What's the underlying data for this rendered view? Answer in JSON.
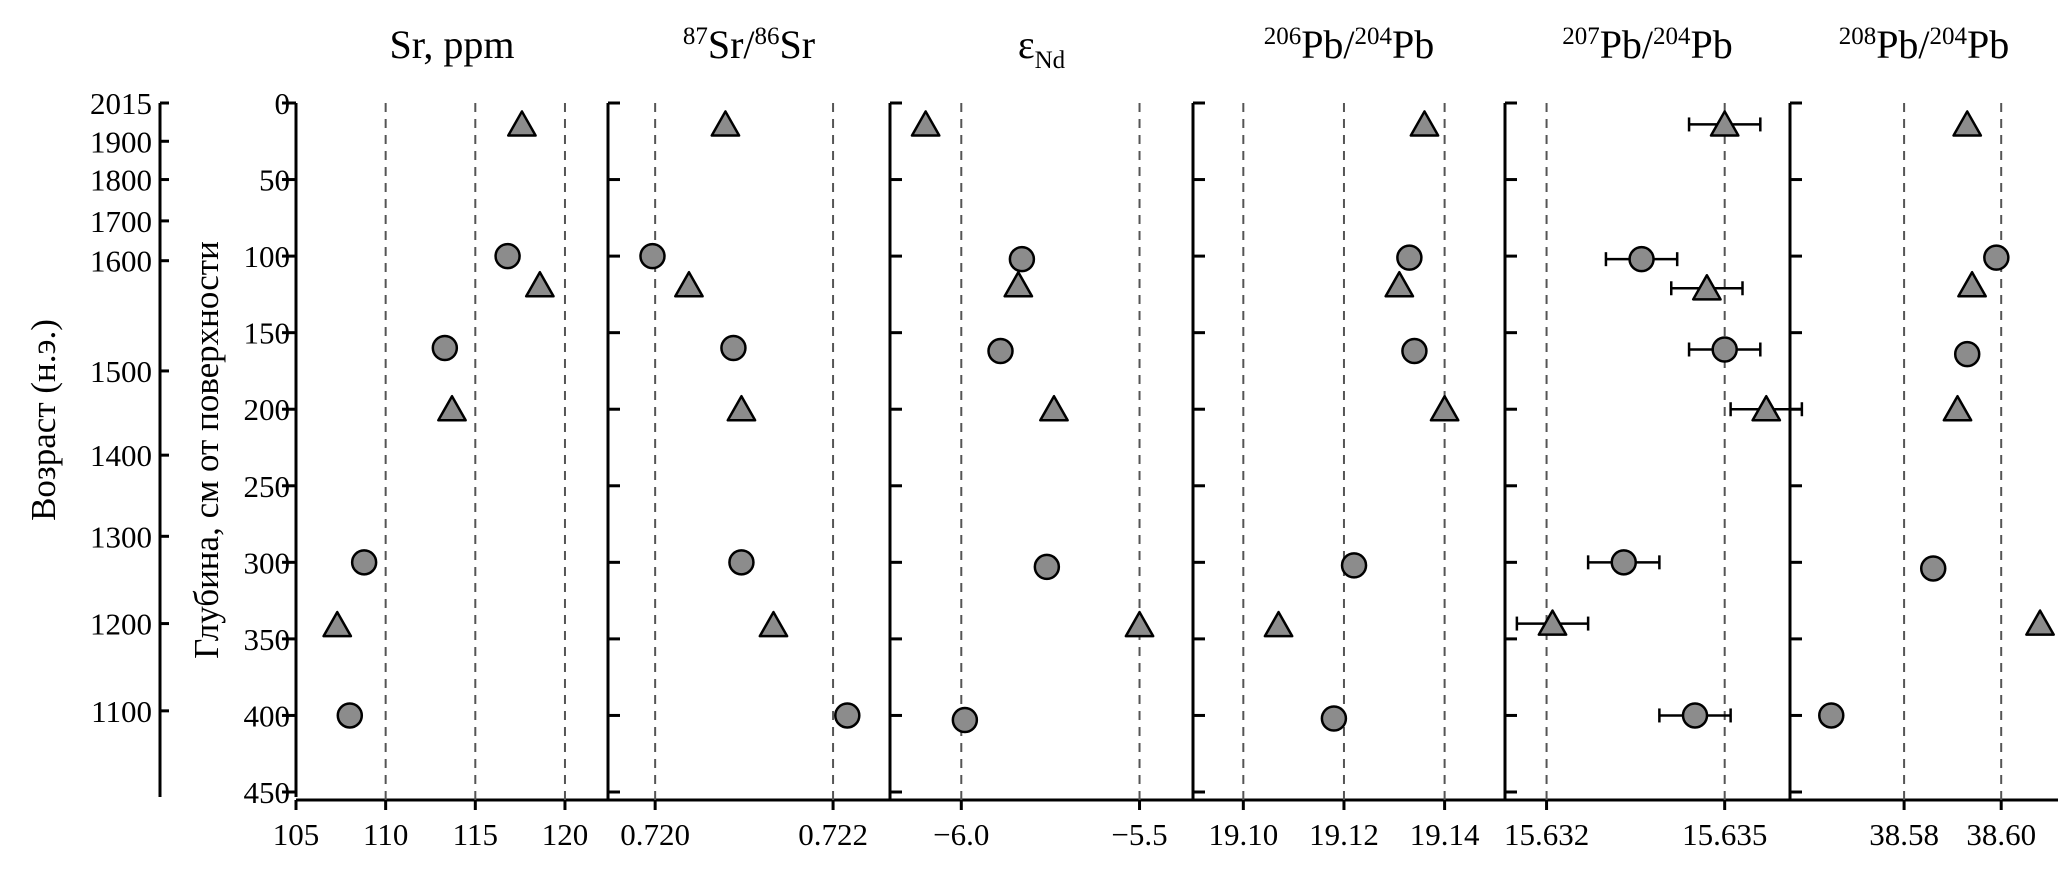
{
  "chart_data": {
    "type": "scatter",
    "y_axis": {
      "label": "Глубина, см от поверхности",
      "range": [
        0,
        450
      ],
      "ticks": [
        0,
        50,
        100,
        150,
        200,
        250,
        300,
        350,
        400,
        450
      ],
      "tick_labels": [
        "0",
        "50",
        "100",
        "150",
        "200",
        "250",
        "300",
        "350",
        "400",
        "450"
      ],
      "inverted": true
    },
    "age_axis": {
      "label": "Возраст (н.э.)",
      "tick_labels": [
        "2015",
        "1900",
        "1800",
        "1700",
        "1600",
        "1500",
        "1400",
        "1300",
        "1200",
        "1100"
      ],
      "depths": [
        0,
        25,
        50,
        77,
        103,
        175,
        230,
        283,
        340,
        397
      ]
    },
    "marker_fill": "#8c8c8c",
    "gridlines": "vertical dashed",
    "panels": [
      {
        "title": "Sr, ppm",
        "title_main": [
          "Sr, ppm"
        ],
        "title_sup": [],
        "title_sub": [],
        "xlim": [
          105,
          122.4
        ],
        "ticks": [
          105,
          110,
          115,
          120
        ],
        "tick_labels": [
          "105",
          "110",
          "115",
          "120"
        ],
        "grid": [
          110,
          115,
          120
        ],
        "circles": [
          {
            "x": 116.8,
            "y": 100
          },
          {
            "x": 113.3,
            "y": 160
          },
          {
            "x": 108.8,
            "y": 300
          },
          {
            "x": 108.0,
            "y": 400
          }
        ],
        "triangles": [
          {
            "x": 117.6,
            "y": 14
          },
          {
            "x": 118.6,
            "y": 119
          },
          {
            "x": 113.7,
            "y": 200
          },
          {
            "x": 107.3,
            "y": 341
          }
        ]
      },
      {
        "title": "87Sr/86Sr",
        "title_main": [
          "Sr/",
          "Sr"
        ],
        "title_sup": [
          "87",
          "86"
        ],
        "title_sub": [],
        "xlim": [
          0.71947,
          0.72264
        ],
        "ticks": [
          0.72,
          0.722
        ],
        "tick_labels": [
          "0.720",
          "0.722"
        ],
        "grid": [
          0.72,
          0.722
        ],
        "circles": [
          {
            "x": 0.71997,
            "y": 100
          },
          {
            "x": 0.72088,
            "y": 160
          },
          {
            "x": 0.72097,
            "y": 300
          },
          {
            "x": 0.72216,
            "y": 400
          }
        ],
        "triangles": [
          {
            "x": 0.72079,
            "y": 14
          },
          {
            "x": 0.72038,
            "y": 119
          },
          {
            "x": 0.72097,
            "y": 200
          },
          {
            "x": 0.72133,
            "y": 341
          }
        ]
      },
      {
        "title": "εNd",
        "title_main": [
          "ε"
        ],
        "title_sup": [],
        "title_sub": [
          "Nd"
        ],
        "xlim": [
          -6.2,
          -5.35
        ],
        "ticks": [
          -6.0,
          -5.5
        ],
        "tick_labels": [
          "−6.0",
          "−5.5"
        ],
        "grid": [
          -6.0,
          -5.5
        ],
        "circles": [
          {
            "x": -5.83,
            "y": 102
          },
          {
            "x": -5.89,
            "y": 162
          },
          {
            "x": -5.76,
            "y": 303
          },
          {
            "x": -5.99,
            "y": 403
          }
        ],
        "triangles": [
          {
            "x": -6.1,
            "y": 14
          },
          {
            "x": -5.84,
            "y": 119
          },
          {
            "x": -5.74,
            "y": 200
          },
          {
            "x": -5.5,
            "y": 341
          }
        ]
      },
      {
        "title": "206Pb/204Pb",
        "title_main": [
          "Pb/",
          "Pb"
        ],
        "title_sup": [
          "206",
          "204"
        ],
        "title_sub": [],
        "xlim": [
          19.09,
          19.152
        ],
        "ticks": [
          19.1,
          19.12,
          19.14
        ],
        "tick_labels": [
          "19.10",
          "19.12",
          "19.14"
        ],
        "grid": [
          19.1,
          19.12,
          19.14
        ],
        "circles": [
          {
            "x": 19.133,
            "y": 101
          },
          {
            "x": 19.134,
            "y": 162
          },
          {
            "x": 19.122,
            "y": 302
          },
          {
            "x": 19.118,
            "y": 402
          }
        ],
        "triangles": [
          {
            "x": 19.136,
            "y": 14
          },
          {
            "x": 19.131,
            "y": 119
          },
          {
            "x": 19.14,
            "y": 200
          },
          {
            "x": 19.107,
            "y": 341
          }
        ]
      },
      {
        "title": "207Pb/204Pb",
        "title_main": [
          "Pb/",
          "Pb"
        ],
        "title_sup": [
          "207",
          "204"
        ],
        "title_sub": [],
        "xlim": [
          15.6313,
          15.6361
        ],
        "ticks": [
          15.632,
          15.635
        ],
        "tick_labels": [
          "15.632",
          "15.635"
        ],
        "grid": [
          15.632,
          15.635
        ],
        "circles": [
          {
            "x": 15.6336,
            "y": 102,
            "err": 0.0006
          },
          {
            "x": 15.635,
            "y": 161,
            "err": 0.0006
          },
          {
            "x": 15.6333,
            "y": 300,
            "err": 0.0006
          },
          {
            "x": 15.6345,
            "y": 400,
            "err": 0.0006
          }
        ],
        "triangles": [
          {
            "x": 15.635,
            "y": 14,
            "err": 0.0006
          },
          {
            "x": 15.6347,
            "y": 121,
            "err": 0.0006
          },
          {
            "x": 15.6357,
            "y": 200,
            "err": 0.0006
          },
          {
            "x": 15.6321,
            "y": 340,
            "err": 0.0006
          }
        ]
      },
      {
        "title": "208Pb/204Pb",
        "title_main": [
          "Pb/",
          "Pb"
        ],
        "title_sup": [
          "208",
          "204"
        ],
        "title_sub": [],
        "xlim": [
          38.5565,
          38.6117
        ],
        "ticks": [
          38.58,
          38.6
        ],
        "tick_labels": [
          "38.58",
          "38.60"
        ],
        "grid": [
          38.58,
          38.6
        ],
        "circles": [
          {
            "x": 38.599,
            "y": 101
          },
          {
            "x": 38.593,
            "y": 164
          },
          {
            "x": 38.586,
            "y": 304
          },
          {
            "x": 38.565,
            "y": 400
          }
        ],
        "triangles": [
          {
            "x": 38.593,
            "y": 14
          },
          {
            "x": 38.594,
            "y": 119
          },
          {
            "x": 38.591,
            "y": 200
          },
          {
            "x": 38.608,
            "y": 340
          }
        ]
      }
    ]
  }
}
